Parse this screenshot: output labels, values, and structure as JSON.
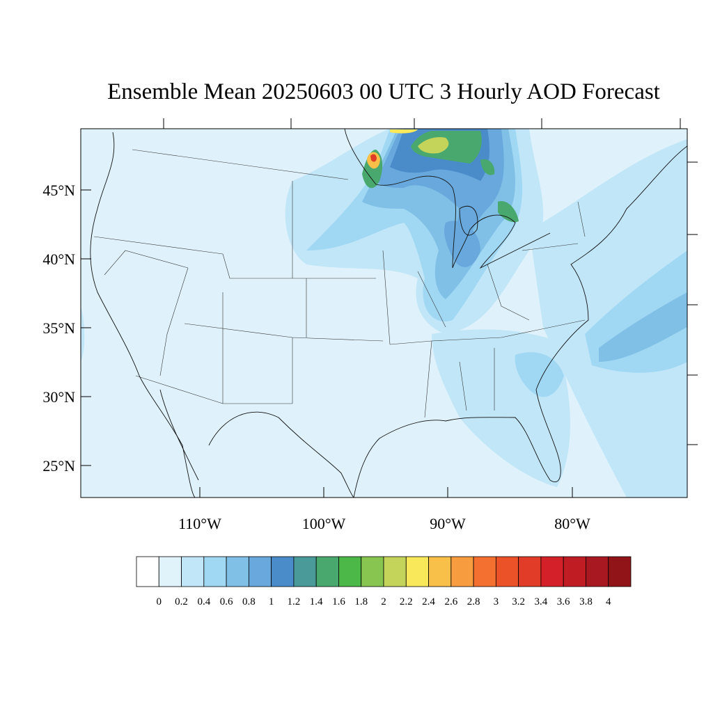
{
  "title": "Ensemble Mean 20250603 00 UTC 3 Hourly AOD Forecast",
  "lat_labels": [
    "45°N",
    "40°N",
    "35°N",
    "30°N",
    "25°N"
  ],
  "lon_labels": [
    "110°W",
    "100°W",
    "90°W",
    "80°W"
  ],
  "colorbar": {
    "colors": [
      "#ffffff",
      "#e0f3fb",
      "#c0e6f8",
      "#a0d8f4",
      "#80bfe6",
      "#68a8dc",
      "#4a8cca",
      "#4a9a9a",
      "#48a86e",
      "#4cb848",
      "#88c450",
      "#c4d45a",
      "#f8e85a",
      "#f8c048",
      "#f89c40",
      "#f47030",
      "#ec5228",
      "#e03c28",
      "#d42028",
      "#c01c24",
      "#a81820",
      "#901418"
    ],
    "labels": [
      "0",
      "0.2",
      "0.4",
      "0.6",
      "0.8",
      "1",
      "1.2",
      "1.4",
      "1.6",
      "1.8",
      "2",
      "2.2",
      "2.4",
      "2.6",
      "2.8",
      "3",
      "3.2",
      "3.4",
      "3.6",
      "3.8",
      "4"
    ]
  }
}
